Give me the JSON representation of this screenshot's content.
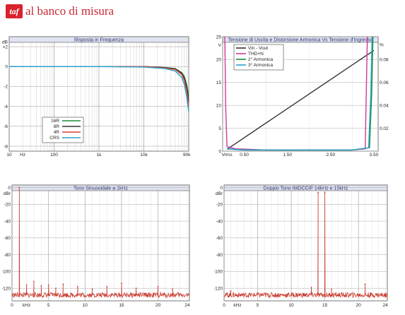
{
  "header": {
    "logo_text": "taf",
    "title": "al banco di misura"
  },
  "charts": [
    {
      "id": "c1",
      "type": "line",
      "title": "Risposta in Frequenza",
      "xscale": "log",
      "xlim": [
        10,
        100000
      ],
      "x_ticks": [
        {
          "v": 10,
          "label": "10"
        },
        {
          "v": 20,
          "label": "Hz"
        },
        {
          "v": 100,
          "label": "100"
        },
        {
          "v": 1000,
          "label": "1k"
        },
        {
          "v": 10000,
          "label": "10k"
        },
        {
          "v": 90000,
          "label": "90k"
        }
      ],
      "ylim": [
        -8.5,
        3
      ],
      "y_ticks": [
        {
          "v": 2.5,
          "label": "dB"
        },
        {
          "v": 2,
          "label": "+2"
        },
        {
          "v": 0,
          "label": "0"
        },
        {
          "v": -2,
          "label": "-2"
        },
        {
          "v": -4,
          "label": "-4"
        },
        {
          "v": -6,
          "label": "-6"
        },
        {
          "v": -8,
          "label": "-8"
        }
      ],
      "legend": {
        "position": "bottom-left",
        "entries": [
          {
            "name": "16R",
            "color": "#1a8a3a"
          },
          {
            "name": "8R",
            "color": "#333333"
          },
          {
            "name": "4R",
            "color": "#d8403a"
          },
          {
            "name": "CRS",
            "color": "#2aa0c8"
          }
        ]
      },
      "series": [
        {
          "name": "16R",
          "color": "#1a8a3a",
          "x": [
            10,
            100,
            1000,
            10000,
            30000,
            50000,
            70000,
            80000,
            90000,
            100000
          ],
          "y": [
            0,
            0,
            0,
            0,
            -0.1,
            -0.2,
            -0.6,
            -1.0,
            -1.8,
            -3.0
          ]
        },
        {
          "name": "8R",
          "color": "#333333",
          "x": [
            10,
            100,
            1000,
            10000,
            30000,
            50000,
            70000,
            80000,
            90000,
            100000
          ],
          "y": [
            0,
            0,
            0,
            0,
            -0.1,
            -0.25,
            -0.7,
            -1.2,
            -2.0,
            -3.5
          ]
        },
        {
          "name": "4R",
          "color": "#d8403a",
          "x": [
            10,
            100,
            1000,
            10000,
            30000,
            50000,
            70000,
            80000,
            90000,
            100000
          ],
          "y": [
            0,
            0,
            0,
            0,
            -0.15,
            -0.3,
            -0.8,
            -1.4,
            -2.4,
            -4.0
          ]
        },
        {
          "name": "CRS",
          "color": "#2aa0c8",
          "x": [
            10,
            100,
            1000,
            10000,
            30000,
            50000,
            70000,
            80000,
            90000,
            100000
          ],
          "y": [
            0,
            0,
            0,
            -0.05,
            -0.2,
            -0.45,
            -1.1,
            -1.8,
            -3.0,
            -4.5
          ]
        }
      ]
    },
    {
      "id": "c2",
      "type": "line",
      "title": "Tensione di Uscita e Distorsione Armonica Vs Tensione d'Ingresso",
      "xlim": [
        0,
        3.6
      ],
      "x_ticks": [
        {
          "v": 0.1,
          "label": "Vrms"
        },
        {
          "v": 0.5,
          "label": "0.50"
        },
        {
          "v": 1.5,
          "label": "1.50"
        },
        {
          "v": 2.5,
          "label": "2.50"
        },
        {
          "v": 3.5,
          "label": "3.50"
        }
      ],
      "ylim": [
        0,
        25
      ],
      "y_ticks": [
        {
          "v": 25,
          "label": "25"
        },
        {
          "v": 23.2,
          "label": "V"
        },
        {
          "v": 20,
          "label": "20"
        },
        {
          "v": 15,
          "label": "15"
        },
        {
          "v": 10,
          "label": "10"
        },
        {
          "v": 5,
          "label": "5"
        },
        {
          "v": 0,
          "label": "0"
        }
      ],
      "y2lim": [
        0,
        0.1
      ],
      "y2_ticks": [
        {
          "v": 0.093,
          "label": "%"
        },
        {
          "v": 0.08,
          "label": "0.08"
        },
        {
          "v": 0.06,
          "label": "0.06"
        },
        {
          "v": 0.04,
          "label": "0.04"
        },
        {
          "v": 0.02,
          "label": "0.02"
        }
      ],
      "legend": {
        "position": "top-left",
        "entries": [
          {
            "name": "Vin - Vout",
            "color": "#333333"
          },
          {
            "name": "THD+N",
            "color": "#cc3a99"
          },
          {
            "name": "2° Armonica",
            "color": "#1a8a3a"
          },
          {
            "name": "3° Armonica",
            "color": "#2aa0c8"
          }
        ]
      },
      "series": [
        {
          "name": "Vin - Vout",
          "axis": "left",
          "color": "#333333",
          "x": [
            0.1,
            3.5
          ],
          "y": [
            0.4,
            22
          ]
        },
        {
          "name": "THD+N",
          "axis": "right",
          "color": "#cc3a99",
          "x": [
            0.05,
            0.07,
            0.1,
            0.3,
            1,
            2,
            3,
            3.3,
            3.32,
            3.35
          ],
          "y": [
            0.1,
            0.04,
            0.004,
            0.002,
            0.001,
            0.001,
            0.001,
            0.002,
            0.04,
            0.1
          ]
        },
        {
          "name": "2° Armonica",
          "axis": "right",
          "color": "#1a8a3a",
          "x": [
            0.1,
            0.5,
            1,
            2,
            3,
            3.4,
            3.45,
            3.48
          ],
          "y": [
            0.002,
            0.001,
            0.001,
            0.001,
            0.001,
            0.003,
            0.05,
            0.1
          ]
        },
        {
          "name": "3° Armonica",
          "axis": "right",
          "color": "#2aa0c8",
          "x": [
            0.1,
            0.5,
            1,
            2,
            3,
            3.38,
            3.43,
            3.46
          ],
          "y": [
            0.002,
            0.001,
            0.001,
            0.001,
            0.001,
            0.003,
            0.05,
            0.1
          ]
        }
      ]
    },
    {
      "id": "c3",
      "type": "spectrum",
      "title": "Tono Sinusoidale a 1kHz",
      "xlim": [
        0,
        24.3
      ],
      "x_ticks": [
        {
          "v": 0,
          "label": "0"
        },
        {
          "v": 2,
          "label": "kHz"
        },
        {
          "v": 5,
          "label": "5"
        },
        {
          "v": 10,
          "label": "10"
        },
        {
          "v": 15,
          "label": "15"
        },
        {
          "v": 20,
          "label": "20"
        },
        {
          "v": 24,
          "label": "24"
        }
      ],
      "ylim": [
        -135,
        3
      ],
      "y_ticks": [
        {
          "v": 0,
          "label": "0"
        },
        {
          "v": -7,
          "label": "dBr"
        },
        {
          "v": -20,
          "label": "-20"
        },
        {
          "v": -40,
          "label": "-40"
        },
        {
          "v": -60,
          "label": "-60"
        },
        {
          "v": -80,
          "label": "-80"
        },
        {
          "v": -100,
          "label": "-100"
        },
        {
          "v": -120,
          "label": "-120"
        }
      ],
      "series": [
        {
          "name": "spectrum",
          "color": "#c83a2e",
          "noise_floor": -128,
          "peaks": [
            {
              "x": 1,
              "y": 0
            },
            {
              "x": 2,
              "y": -116
            },
            {
              "x": 3,
              "y": -112
            },
            {
              "x": 4,
              "y": -117
            },
            {
              "x": 5,
              "y": -116
            },
            {
              "x": 6,
              "y": -120
            },
            {
              "x": 7,
              "y": -115
            },
            {
              "x": 9,
              "y": -118
            },
            {
              "x": 11,
              "y": -121
            },
            {
              "x": 13,
              "y": -118
            },
            {
              "x": 15,
              "y": -114
            },
            {
              "x": 17,
              "y": -120
            },
            {
              "x": 20,
              "y": -118
            },
            {
              "x": 22,
              "y": -121
            }
          ]
        }
      ]
    },
    {
      "id": "c4",
      "type": "spectrum",
      "title": "Doppio Tono IMDCCIF 14kHz e 15kHz",
      "xlim": [
        0,
        24.3
      ],
      "x_ticks": [
        {
          "v": 0,
          "label": "0"
        },
        {
          "v": 2,
          "label": "kHz"
        },
        {
          "v": 5,
          "label": "5"
        },
        {
          "v": 10,
          "label": "10"
        },
        {
          "v": 15,
          "label": "15"
        },
        {
          "v": 20,
          "label": "20"
        },
        {
          "v": 24,
          "label": "24"
        }
      ],
      "ylim": [
        -135,
        3
      ],
      "y_ticks": [
        {
          "v": 0,
          "label": "0"
        },
        {
          "v": -7,
          "label": "dBr"
        },
        {
          "v": -20,
          "label": "-20"
        },
        {
          "v": -40,
          "label": "-40"
        },
        {
          "v": -60,
          "label": "-60"
        },
        {
          "v": -80,
          "label": "-80"
        },
        {
          "v": -100,
          "label": "-100"
        },
        {
          "v": -120,
          "label": "-120"
        }
      ],
      "series": [
        {
          "name": "spectrum",
          "color": "#c83a2e",
          "noise_floor": -128,
          "peaks": [
            {
              "x": 1,
              "y": -123
            },
            {
              "x": 13,
              "y": -119
            },
            {
              "x": 14,
              "y": -6
            },
            {
              "x": 15,
              "y": -6
            },
            {
              "x": 16,
              "y": -121
            },
            {
              "x": 21,
              "y": -115
            }
          ]
        }
      ]
    }
  ]
}
